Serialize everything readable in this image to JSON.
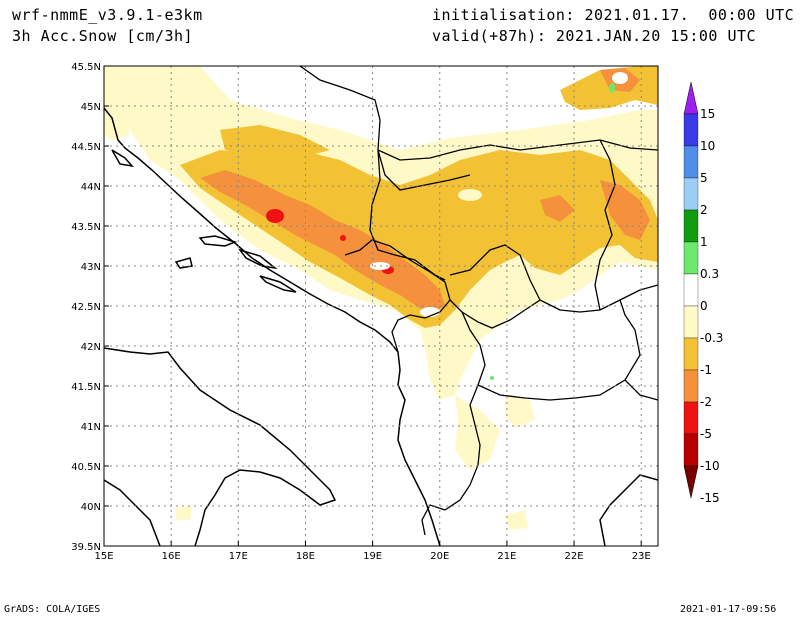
{
  "header": {
    "model": "wrf-nmmE_v3.9.1-e3km",
    "variable": "3h Acc.Snow [cm/3h]",
    "init": "initialisation: 2021.01.17.  00:00 UTC",
    "valid": "valid(+87h): 2021.JAN.20 15:00 UTC"
  },
  "map": {
    "lon_range": [
      15,
      23.25
    ],
    "lat_range": [
      39.5,
      45.5
    ],
    "lon_ticks": [
      "15E",
      "16E",
      "17E",
      "18E",
      "19E",
      "20E",
      "21E",
      "22E",
      "23E"
    ],
    "lat_ticks": [
      "45.5N",
      "45N",
      "44.5N",
      "44N",
      "43.5N",
      "43N",
      "42.5N",
      "42N",
      "41.5N",
      "41N",
      "40.5N",
      "40N",
      "39.5N"
    ],
    "grid": true
  },
  "colorbar": {
    "labels": [
      "15",
      "10",
      "5",
      "2",
      "1",
      "0.3",
      "0",
      "-0.3",
      "-1",
      "-2",
      "-5",
      "-10",
      "-15"
    ],
    "colors": [
      "#9e1ef0",
      "#3a3ae8",
      "#4e8ee8",
      "#9ccdf6",
      "#129c12",
      "#6ce86c",
      "#ffffff",
      "#fff9c8",
      "#f2c234",
      "#f5913c",
      "#ee1212",
      "#b80000",
      "#7a0000"
    ]
  },
  "colors": {
    "light": "#fff9c8",
    "medium": "#f2c234",
    "heavy": "#f5913c",
    "extreme": "#ee1212",
    "green": "#6ce86c"
  },
  "footer": {
    "left": "GrADS: COLA/IGES",
    "right": "2021-01-17-09:56"
  }
}
